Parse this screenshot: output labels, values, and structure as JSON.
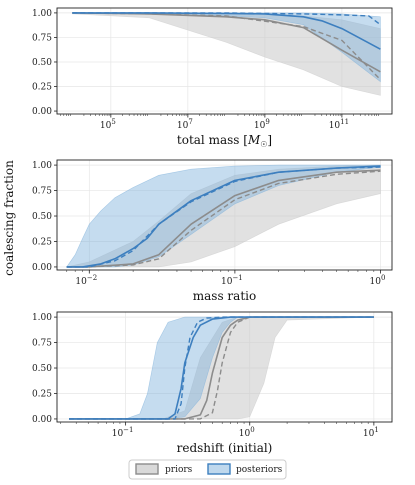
{
  "figure": {
    "shared_ylabel": "coalescing fraction",
    "legend": [
      {
        "name": "priors",
        "color": "#999999"
      },
      {
        "name": "posteriors",
        "color": "#3d7fbf"
      }
    ]
  },
  "colors": {
    "prior_line": "#8c8c8c",
    "prior_band": "#c9c9c9",
    "post_line": "#3d7fbf",
    "post_band": "#7fb1db",
    "grid": "#e6e6e6"
  },
  "chart_data": [
    {
      "type": "line",
      "xlabel": "total mass [M_☉]",
      "xscale": "log",
      "xlim": [
        4000,
        2000000000000.0
      ],
      "ylim": [
        -0.03,
        1.05
      ],
      "xticks": [
        {
          "value": 100000,
          "label": "10",
          "exp": "5"
        },
        {
          "value": 10000000,
          "label": "10",
          "exp": "7"
        },
        {
          "value": 1000000000,
          "label": "10",
          "exp": "9"
        },
        {
          "value": 100000000000,
          "label": "10",
          "exp": "11"
        }
      ],
      "yticks": [
        "0.00",
        "0.25",
        "0.50",
        "0.75",
        "1.00"
      ],
      "grid": true,
      "series": [
        {
          "name": "priors",
          "role": "median",
          "style": "solid",
          "x": [
            10000,
            1000000.0,
            100000000.0,
            1000000000.0,
            10000000000.0,
            100000000000.0,
            1000000000000.0
          ],
          "y": [
            1.0,
            0.99,
            0.96,
            0.93,
            0.85,
            0.62,
            0.4
          ]
        },
        {
          "name": "priors",
          "role": "dashed",
          "style": "dashed",
          "x": [
            10000,
            1000000.0,
            100000000.0,
            10000000000.0,
            100000000000.0,
            1000000000000.0
          ],
          "y": [
            1.0,
            0.99,
            0.97,
            0.86,
            0.72,
            0.32
          ]
        },
        {
          "name": "priors",
          "role": "band",
          "x": [
            10000,
            1000000.0,
            100000000.0,
            1000000000.0,
            10000000000.0,
            100000000000.0,
            1000000000000.0
          ],
          "low": [
            0.99,
            0.95,
            0.7,
            0.55,
            0.42,
            0.25,
            0.16
          ],
          "high": [
            1.0,
            1.0,
            0.99,
            0.99,
            0.97,
            0.93,
            0.84
          ]
        },
        {
          "name": "posteriors",
          "role": "median",
          "style": "solid",
          "x": [
            10000,
            1000000.0,
            100000000.0,
            1000000000.0,
            10000000000.0,
            30000000000.0,
            100000000000.0,
            1000000000000.0
          ],
          "y": [
            1.0,
            1.0,
            0.995,
            0.99,
            0.96,
            0.92,
            0.84,
            0.63
          ]
        },
        {
          "name": "posteriors",
          "role": "dashed",
          "style": "dashed",
          "x": [
            10000,
            1000000.0,
            100000000.0,
            10000000000.0,
            100000000000.0,
            500000000000.0,
            1000000000000.0
          ],
          "y": [
            1.0,
            1.0,
            1.0,
            0.99,
            0.98,
            0.97,
            0.88
          ]
        },
        {
          "name": "posteriors",
          "role": "band",
          "x": [
            10000,
            1000000.0,
            100000000.0,
            1000000000.0,
            10000000000.0,
            100000000000.0,
            1000000000000.0
          ],
          "low": [
            1.0,
            0.99,
            0.97,
            0.95,
            0.88,
            0.6,
            0.3
          ],
          "high": [
            1.0,
            1.0,
            1.0,
            1.0,
            1.0,
            0.99,
            0.96
          ]
        }
      ]
    },
    {
      "type": "line",
      "xlabel": "mass ratio",
      "xscale": "log",
      "xlim": [
        0.006,
        1.2
      ],
      "ylim": [
        -0.03,
        1.05
      ],
      "xticks": [
        {
          "value": 0.01,
          "label": "10",
          "exp": "−2"
        },
        {
          "value": 0.1,
          "label": "10",
          "exp": "−1"
        },
        {
          "value": 1,
          "label": "10",
          "exp": "0"
        }
      ],
      "yticks": [
        "0.00",
        "0.25",
        "0.50",
        "0.75",
        "1.00"
      ],
      "grid": true,
      "series": [
        {
          "name": "priors",
          "role": "median",
          "style": "solid",
          "x": [
            0.007,
            0.01,
            0.02,
            0.03,
            0.05,
            0.1,
            0.2,
            0.5,
            1.0
          ],
          "y": [
            0.0,
            0.0,
            0.03,
            0.12,
            0.42,
            0.7,
            0.85,
            0.93,
            0.95
          ]
        },
        {
          "name": "priors",
          "role": "dashed",
          "style": "dashed",
          "x": [
            0.007,
            0.01,
            0.02,
            0.03,
            0.05,
            0.1,
            0.2,
            0.5,
            1.0
          ],
          "y": [
            0.0,
            0.0,
            0.02,
            0.08,
            0.36,
            0.66,
            0.82,
            0.91,
            0.94
          ]
        },
        {
          "name": "priors",
          "role": "band",
          "x": [
            0.007,
            0.01,
            0.02,
            0.03,
            0.05,
            0.1,
            0.2,
            0.5,
            1.0
          ],
          "low": [
            0.0,
            0.0,
            0.0,
            0.0,
            0.05,
            0.2,
            0.42,
            0.62,
            0.72
          ],
          "high": [
            0.0,
            0.05,
            0.25,
            0.45,
            0.72,
            0.9,
            0.96,
            0.99,
            1.0
          ]
        },
        {
          "name": "posteriors",
          "role": "median",
          "style": "solid",
          "x": [
            0.007,
            0.009,
            0.012,
            0.015,
            0.02,
            0.025,
            0.03,
            0.05,
            0.1,
            0.2,
            0.5,
            1.0
          ],
          "y": [
            0.0,
            0.0,
            0.03,
            0.08,
            0.18,
            0.28,
            0.42,
            0.65,
            0.85,
            0.93,
            0.97,
            0.99
          ]
        },
        {
          "name": "posteriors",
          "role": "dashed",
          "style": "dashed",
          "x": [
            0.007,
            0.01,
            0.015,
            0.02,
            0.03,
            0.05,
            0.1,
            0.2,
            0.5,
            1.0
          ],
          "y": [
            0.0,
            0.0,
            0.06,
            0.16,
            0.42,
            0.64,
            0.84,
            0.93,
            0.97,
            0.98
          ]
        },
        {
          "name": "posteriors",
          "role": "band",
          "x": [
            0.007,
            0.008,
            0.009,
            0.01,
            0.012,
            0.015,
            0.02,
            0.03,
            0.05,
            0.1,
            0.2,
            0.5,
            1.0
          ],
          "low": [
            0.0,
            0.0,
            0.0,
            0.0,
            0.0,
            0.0,
            0.02,
            0.1,
            0.32,
            0.62,
            0.8,
            0.93,
            0.98
          ],
          "high": [
            0.0,
            0.12,
            0.28,
            0.42,
            0.55,
            0.68,
            0.78,
            0.9,
            0.96,
            0.99,
            1.0,
            1.0,
            1.0
          ]
        }
      ]
    },
    {
      "type": "line",
      "xlabel": "redshift (initial)",
      "xscale": "log",
      "xlim": [
        0.028,
        14
      ],
      "ylim": [
        -0.03,
        1.05
      ],
      "xticks": [
        {
          "value": 0.1,
          "label": "10",
          "exp": "−1"
        },
        {
          "value": 1,
          "label": "10",
          "exp": "0"
        },
        {
          "value": 10,
          "label": "10",
          "exp": "1"
        }
      ],
      "yticks": [
        "0.00",
        "0.25",
        "0.50",
        "0.75",
        "1.00"
      ],
      "grid": true,
      "series": [
        {
          "name": "priors",
          "role": "median",
          "style": "solid",
          "x": [
            0.035,
            0.3,
            0.4,
            0.45,
            0.5,
            0.6,
            0.7,
            0.8,
            1.0,
            10.0
          ],
          "y": [
            0.0,
            0.0,
            0.04,
            0.18,
            0.45,
            0.8,
            0.92,
            0.97,
            1.0,
            1.0
          ]
        },
        {
          "name": "priors",
          "role": "dashed",
          "style": "dashed",
          "x": [
            0.035,
            0.4,
            0.5,
            0.55,
            0.6,
            0.7,
            0.8,
            1.0,
            10.0
          ],
          "y": [
            0.0,
            0.0,
            0.06,
            0.28,
            0.55,
            0.85,
            0.95,
            1.0,
            1.0
          ]
        },
        {
          "name": "priors",
          "role": "band",
          "x": [
            0.035,
            0.2,
            0.3,
            0.4,
            0.6,
            0.8,
            1.0,
            1.3,
            1.6,
            2.0,
            10.0
          ],
          "low": [
            0.0,
            0.0,
            0.0,
            0.0,
            0.0,
            0.0,
            0.02,
            0.35,
            0.8,
            0.97,
            1.0
          ],
          "high": [
            0.0,
            0.0,
            0.08,
            0.6,
            0.95,
            1.0,
            1.0,
            1.0,
            1.0,
            1.0,
            1.0
          ]
        },
        {
          "name": "posteriors",
          "role": "median",
          "style": "solid",
          "x": [
            0.035,
            0.22,
            0.25,
            0.28,
            0.3,
            0.35,
            0.4,
            0.5,
            0.7,
            1.0,
            10.0
          ],
          "y": [
            0.0,
            0.0,
            0.05,
            0.3,
            0.55,
            0.8,
            0.92,
            0.98,
            1.0,
            1.0,
            1.0
          ]
        },
        {
          "name": "posteriors",
          "role": "dashed",
          "style": "dashed",
          "x": [
            0.035,
            0.25,
            0.28,
            0.3,
            0.33,
            0.38,
            0.45,
            0.6,
            10.0
          ],
          "y": [
            0.0,
            0.0,
            0.15,
            0.5,
            0.8,
            0.95,
            0.99,
            1.0,
            1.0
          ]
        },
        {
          "name": "posteriors",
          "role": "band",
          "x": [
            0.035,
            0.1,
            0.13,
            0.15,
            0.18,
            0.22,
            0.3,
            0.4,
            0.5,
            0.6,
            0.7,
            0.8,
            10.0
          ],
          "low": [
            0.0,
            0.0,
            0.0,
            0.0,
            0.0,
            0.0,
            0.02,
            0.2,
            0.6,
            0.85,
            0.95,
            1.0,
            1.0
          ],
          "high": [
            0.0,
            0.0,
            0.05,
            0.25,
            0.75,
            0.95,
            1.0,
            1.0,
            1.0,
            1.0,
            1.0,
            1.0,
            1.0
          ]
        }
      ]
    }
  ]
}
